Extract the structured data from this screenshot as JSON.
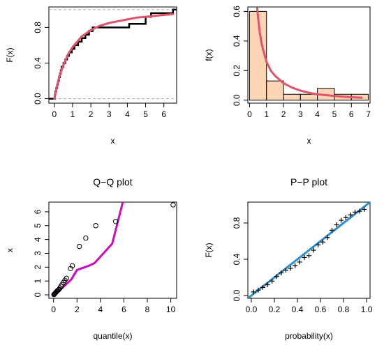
{
  "chart_data": [
    {
      "id": "ecdf",
      "type": "line",
      "title": "",
      "xlabel": "x",
      "ylabel": "F(x)",
      "xlim": [
        -0.3,
        6.7
      ],
      "ylim": [
        -0.05,
        1.03
      ],
      "xticks": [
        0,
        1,
        2,
        3,
        4,
        5,
        6
      ],
      "yticks": [
        0.0,
        0.4,
        0.8
      ],
      "ytick_labels": [
        "0.0",
        "0.4",
        "0.8"
      ],
      "hlines": [
        0,
        1
      ],
      "empirical": {
        "x": [
          0.02,
          0.05,
          0.1,
          0.15,
          0.2,
          0.25,
          0.3,
          0.35,
          0.4,
          0.5,
          0.6,
          0.7,
          0.8,
          0.95,
          1.1,
          1.3,
          1.5,
          1.7,
          1.9,
          2.1,
          2.4,
          3.5,
          4.1,
          5.0,
          5.3,
          6.5
        ],
        "y": [
          0.04,
          0.08,
          0.12,
          0.16,
          0.2,
          0.24,
          0.28,
          0.32,
          0.36,
          0.4,
          0.44,
          0.48,
          0.52,
          0.56,
          0.6,
          0.64,
          0.68,
          0.72,
          0.76,
          0.8,
          0.8,
          0.8,
          0.84,
          0.92,
          0.96,
          1.0
        ]
      },
      "fitted": {
        "x": [
          0,
          0.1,
          0.2,
          0.3,
          0.5,
          0.75,
          1.0,
          1.5,
          2.0,
          2.5,
          3.0,
          3.5,
          4.0,
          4.5,
          5.0,
          5.5,
          6.0,
          6.5
        ],
        "y": [
          0.0,
          0.1,
          0.19,
          0.27,
          0.38,
          0.5,
          0.58,
          0.7,
          0.77,
          0.82,
          0.85,
          0.87,
          0.89,
          0.91,
          0.92,
          0.93,
          0.94,
          0.95
        ]
      },
      "colors": {
        "empirical": "#000000",
        "fitted": "#DF536B",
        "reference": "#AAAAAA"
      }
    },
    {
      "id": "density",
      "type": "bar",
      "title": "",
      "xlabel": "x",
      "ylabel": "f(x)",
      "xlim": [
        -0.1,
        7.1
      ],
      "ylim": [
        -0.02,
        0.63
      ],
      "xticks": [
        0,
        1,
        2,
        3,
        4,
        5,
        6,
        7
      ],
      "yticks": [
        0.0,
        0.2,
        0.4,
        0.6
      ],
      "ytick_labels": [
        "0.0",
        "0.2",
        "0.4",
        "0.6"
      ],
      "bins": [
        [
          0,
          1
        ],
        [
          1,
          2
        ],
        [
          2,
          3
        ],
        [
          3,
          4
        ],
        [
          4,
          5
        ],
        [
          5,
          6
        ],
        [
          6,
          7
        ]
      ],
      "values": [
        0.6,
        0.13,
        0.04,
        0.04,
        0.08,
        0.04,
        0.04
      ],
      "fitted": {
        "x": [
          0.45,
          0.5,
          0.6,
          0.7,
          0.8,
          1.0,
          1.25,
          1.5,
          2.0,
          2.5,
          3.0,
          3.5,
          4.0,
          5.0,
          6.0,
          6.6
        ],
        "y": [
          0.62,
          0.56,
          0.46,
          0.39,
          0.34,
          0.26,
          0.2,
          0.165,
          0.115,
          0.085,
          0.065,
          0.05,
          0.04,
          0.028,
          0.02,
          0.017
        ]
      },
      "colors": {
        "bar_fill": "#FCD5B5",
        "bar_border": "#000000",
        "fitted": "#DF536B"
      }
    },
    {
      "id": "qq",
      "type": "scatter",
      "title": "Q−Q plot",
      "xlabel": "quantile(x)",
      "ylabel": "x",
      "xlim": [
        -0.4,
        10.5
      ],
      "ylim": [
        -0.25,
        6.7
      ],
      "xticks": [
        0,
        2,
        4,
        6,
        8,
        10
      ],
      "yticks": [
        0,
        1,
        2,
        3,
        4,
        5,
        6
      ],
      "points": {
        "x": [
          0.03,
          0.07,
          0.12,
          0.17,
          0.22,
          0.27,
          0.33,
          0.4,
          0.47,
          0.55,
          0.63,
          0.73,
          0.85,
          0.97,
          1.1,
          1.45,
          1.6,
          2.2,
          2.75,
          3.6,
          5.3,
          10.2
        ],
        "y": [
          0.02,
          0.06,
          0.1,
          0.15,
          0.2,
          0.25,
          0.3,
          0.35,
          0.4,
          0.5,
          0.62,
          0.75,
          0.9,
          1.05,
          1.2,
          1.9,
          2.1,
          3.5,
          4.1,
          5.0,
          5.3,
          6.5
        ]
      },
      "line": {
        "x": [
          0,
          0.5,
          1.0,
          1.5,
          2.0,
          3.0,
          3.5,
          5.0,
          6.0
        ],
        "y": [
          0,
          0.3,
          0.7,
          1.1,
          1.8,
          2.1,
          2.3,
          3.7,
          7.0
        ]
      },
      "colors": {
        "points": "#000000",
        "line": "#CD0BBC"
      }
    },
    {
      "id": "pp",
      "type": "scatter",
      "title": "P−P plot",
      "xlabel": "probability(x)",
      "ylabel": "F(x)",
      "xlim": [
        -0.03,
        1.03
      ],
      "ylim": [
        -0.03,
        1.03
      ],
      "xticks": [
        0.0,
        0.2,
        0.4,
        0.6,
        0.8,
        1.0
      ],
      "yticks": [
        0.0,
        0.4,
        0.8
      ],
      "xtick_labels": [
        "0.0",
        "0.2",
        "0.4",
        "0.6",
        "0.8",
        "1.0"
      ],
      "ytick_labels": [
        "0.0",
        "0.4",
        "0.8"
      ],
      "points": {
        "x": [
          0.02,
          0.06,
          0.1,
          0.14,
          0.18,
          0.22,
          0.26,
          0.3,
          0.34,
          0.38,
          0.42,
          0.46,
          0.5,
          0.54,
          0.58,
          0.62,
          0.66,
          0.7,
          0.74,
          0.78,
          0.82,
          0.86,
          0.9,
          0.94,
          0.98
        ],
        "y": [
          0.04,
          0.06,
          0.09,
          0.12,
          0.16,
          0.21,
          0.25,
          0.28,
          0.3,
          0.33,
          0.37,
          0.42,
          0.44,
          0.5,
          0.56,
          0.59,
          0.64,
          0.72,
          0.78,
          0.83,
          0.86,
          0.89,
          0.92,
          0.93,
          0.95
        ]
      },
      "reference_line": {
        "intercept": 0,
        "slope": 1
      },
      "colors": {
        "points": "#000000",
        "line": "#2E8FD0"
      }
    }
  ]
}
